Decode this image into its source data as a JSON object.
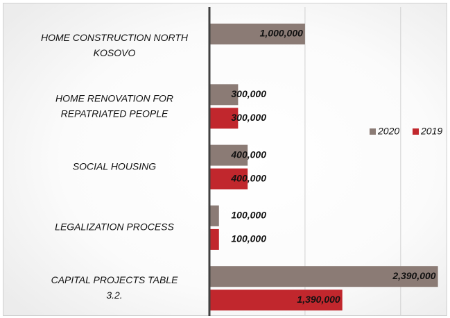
{
  "chart_data": {
    "type": "bar",
    "orientation": "horizontal",
    "categories": [
      "HOME CONSTRUCTION NORTH KOSOVO",
      "HOME RENOVATION FOR REPATRIATED PEOPLE",
      "SOCIAL HOUSING",
      "LEGALIZATION PROCESS",
      "CAPITAL PROJECTS TABLE 3.2."
    ],
    "series": [
      {
        "name": "2020",
        "color": "#8b7b75",
        "values": [
          1000000,
          300000,
          400000,
          100000,
          2390000
        ],
        "value_labels": [
          "1,000,000",
          "300,000",
          "400,000",
          "100,000",
          "2,390,000"
        ]
      },
      {
        "name": "2019",
        "color": "#c1272d",
        "values": [
          null,
          300000,
          400000,
          100000,
          1390000
        ],
        "value_labels": [
          null,
          "300,000",
          "400,000",
          "100,000",
          "1,390,000"
        ]
      }
    ],
    "xlim": [
      0,
      2400000
    ],
    "xticks": [
      0,
      1000000,
      2000000
    ],
    "grid": true,
    "legend": "right"
  }
}
